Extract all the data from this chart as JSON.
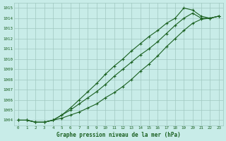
{
  "title": "Graphe pression niveau de la mer (hPa)",
  "bg_color": "#c8ece8",
  "grid_color": "#a0c8c0",
  "line_color": "#1a6020",
  "x_ticks": [
    0,
    1,
    2,
    3,
    4,
    5,
    6,
    7,
    8,
    9,
    10,
    11,
    12,
    13,
    14,
    15,
    16,
    17,
    18,
    19,
    20,
    21,
    22,
    23
  ],
  "y_ticks": [
    1004,
    1005,
    1006,
    1007,
    1008,
    1009,
    1010,
    1011,
    1012,
    1013,
    1014,
    1015
  ],
  "ylim": [
    1003.5,
    1015.5
  ],
  "xlim": [
    -0.5,
    23.5
  ],
  "series1": [
    1004.0,
    1004.0,
    1003.8,
    1003.8,
    1004.0,
    1004.2,
    1004.5,
    1004.8,
    1005.2,
    1005.6,
    1006.2,
    1006.7,
    1007.3,
    1008.0,
    1008.8,
    1009.5,
    1010.3,
    1011.2,
    1012.0,
    1012.8,
    1013.5,
    1013.9,
    1014.0,
    1014.2
  ],
  "series2": [
    1004.0,
    1004.0,
    1003.8,
    1003.8,
    1004.0,
    1004.5,
    1005.0,
    1005.6,
    1006.2,
    1006.8,
    1007.5,
    1008.3,
    1009.0,
    1009.7,
    1010.4,
    1011.0,
    1011.7,
    1012.5,
    1013.3,
    1014.0,
    1014.5,
    1014.0,
    1014.0,
    1014.2
  ],
  "series3": [
    1004.0,
    1004.0,
    1003.8,
    1003.8,
    1004.0,
    1004.5,
    1005.2,
    1006.0,
    1006.8,
    1007.6,
    1008.5,
    1009.3,
    1010.0,
    1010.8,
    1011.5,
    1012.2,
    1012.8,
    1013.5,
    1014.0,
    1015.0,
    1014.8,
    1014.2,
    1014.0,
    1014.2
  ]
}
